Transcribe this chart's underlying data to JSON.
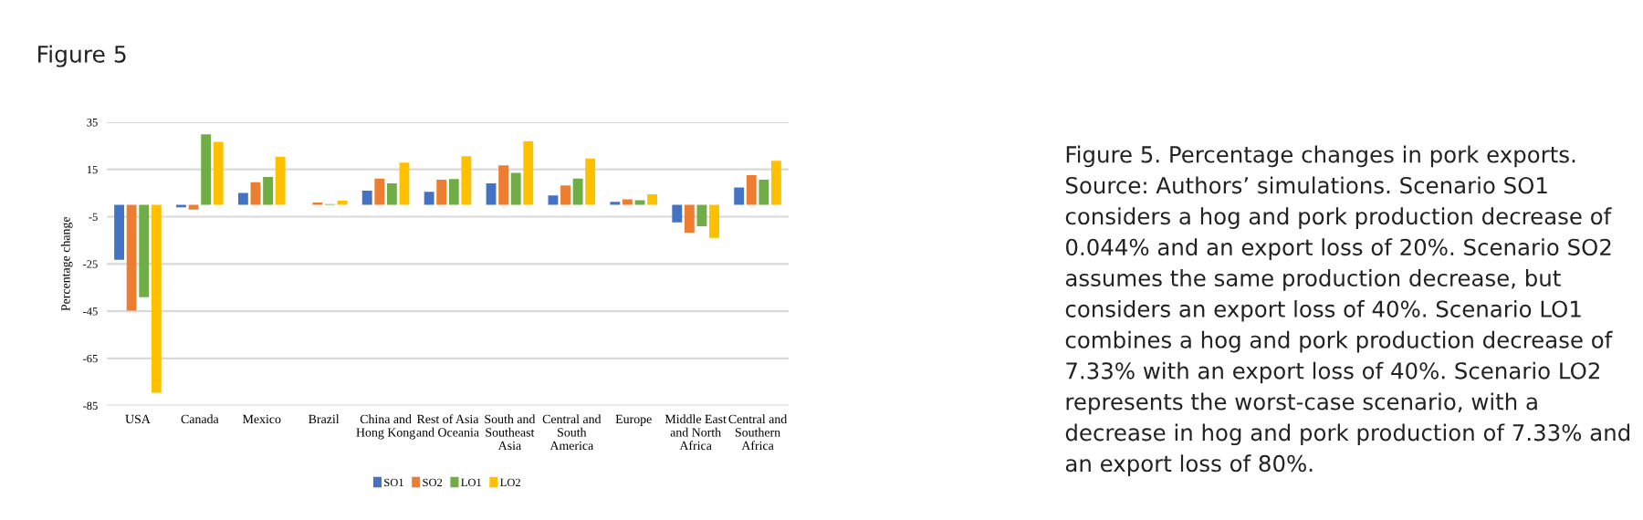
{
  "chart_data": {
    "type": "bar",
    "title": "Figure 5",
    "ylabel": "Percentage change",
    "categories": [
      "USA",
      "Canada",
      "Mexico",
      "Brazil",
      "China and\nHong Kong",
      "Rest of Asia\nand Oceania",
      "South and\nSoutheast\nAsia",
      "Central and\nSouth\nAmerica",
      "Europe",
      "Middle East\nand North\nAfrica",
      "Central and\nSouthern\nAfrica"
    ],
    "series": [
      {
        "name": "SO1",
        "color": "#4472c4",
        "values": [
          -23.3,
          -1,
          5,
          0,
          6,
          5.5,
          9.1,
          4,
          1.3,
          -7.4,
          7.4
        ]
      },
      {
        "name": "SO2",
        "color": "#ed7d31",
        "values": [
          -44.8,
          -2,
          9.6,
          1,
          11.1,
          10.6,
          16.7,
          8.2,
          2.3,
          -11.8,
          12.6
        ]
      },
      {
        "name": "LO1",
        "color": "#70ad47",
        "values": [
          -39.1,
          29.9,
          11.8,
          0.3,
          9.1,
          10.9,
          13.5,
          11.1,
          2,
          -9.1,
          10.6
        ]
      },
      {
        "name": "LO2",
        "color": "#ffc000",
        "values": [
          -79.6,
          26.7,
          20.4,
          1.8,
          17.9,
          20.6,
          27,
          19.6,
          4.5,
          -14,
          18.7
        ]
      }
    ],
    "ylim": [
      -85,
      35
    ],
    "yticks": [
      -85,
      -65,
      -45,
      -25,
      -5,
      15,
      35
    ],
    "grid": "y",
    "legend": "bottom",
    "annotations": [
      "Figure 5. Percentage changes in pork exports. Source: Authors’ simulations. Scenario SO1 considers a hog and pork production decrease of 0.044% and an export loss of 20%. Scenario SO2 assumes the same production decrease, but considers an export loss of 40%. Scenario LO1 combines a hog and pork production decrease of 7.33% with an export loss of 40%. Scenario LO2 represents the worst-case scenario, with a decrease in hog and pork production of 7.33% and an export loss of 80%."
    ]
  }
}
